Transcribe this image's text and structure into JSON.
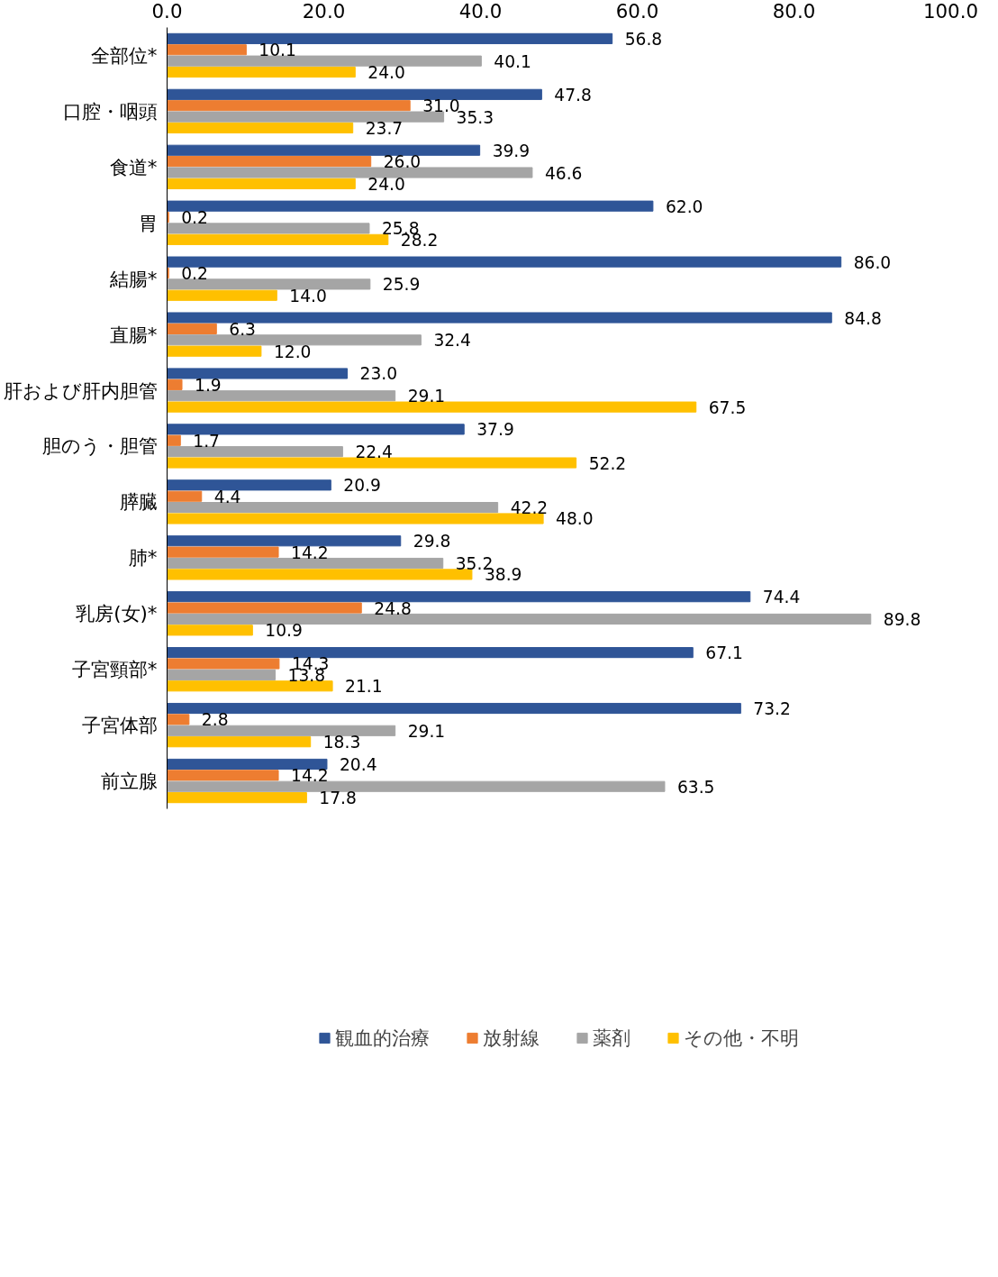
{
  "chart_data": {
    "type": "bar",
    "orientation": "horizontal",
    "categories": [
      "全部位*",
      "口腔・咽頭",
      "食道*",
      "胃",
      "結腸*",
      "直腸*",
      "肝および肝内胆管",
      "胆のう・胆管",
      "膵臓",
      "肺*",
      "乳房(女)*",
      "子宮頸部*",
      "子宮体部",
      "前立腺"
    ],
    "series": [
      {
        "name": "観血的治療",
        "color": "#2f5597",
        "values": [
          56.8,
          47.8,
          39.9,
          62.0,
          86.0,
          84.8,
          23.0,
          37.9,
          20.9,
          29.8,
          74.4,
          67.1,
          73.2,
          20.4
        ],
        "value_labels": [
          "56.8",
          "47.8",
          "39.9",
          "62.0",
          "86.0",
          "84.8",
          "23.0",
          "37.9",
          "20.9",
          "29.8",
          "74.4",
          "67.1",
          "73.2",
          "20.4"
        ]
      },
      {
        "name": "放射線",
        "color": "#ed7d31",
        "values": [
          10.1,
          31.0,
          26.0,
          0.2,
          0.2,
          6.3,
          1.9,
          1.7,
          4.4,
          14.2,
          24.8,
          14.3,
          2.8,
          14.2
        ],
        "value_labels": [
          "10.1",
          "31.0",
          "26.0",
          "0.2",
          "0.2",
          "6.3",
          "1.9",
          "1.7",
          "4.4",
          "14.2",
          "24.8",
          "14.3",
          "2.8",
          "14.2"
        ]
      },
      {
        "name": "薬剤",
        "color": "#a5a5a5",
        "values": [
          40.1,
          35.3,
          46.6,
          25.8,
          25.9,
          32.4,
          29.1,
          22.4,
          42.2,
          35.2,
          89.8,
          13.8,
          29.1,
          63.5
        ],
        "value_labels": [
          "40.1",
          "35.3",
          "46.6",
          "25.8",
          "25.9",
          "32.4",
          "29.1",
          "22.4",
          "42.2",
          "35.2",
          "89.8",
          "13.8",
          "29.1",
          "63.5"
        ]
      },
      {
        "name": "その他・不明",
        "color": "#ffc000",
        "values": [
          24.0,
          23.7,
          24.0,
          28.2,
          14.0,
          12.0,
          67.5,
          52.2,
          48.0,
          38.9,
          10.9,
          21.1,
          18.3,
          17.8
        ],
        "value_labels": [
          "24.0",
          "23.7",
          "24.0",
          "28.2",
          "14.0",
          "12.0",
          "67.5",
          "52.2",
          "48.0",
          "38.9",
          "10.9",
          "21.1",
          "18.3",
          "17.8"
        ]
      }
    ],
    "xlim": [
      0,
      100
    ],
    "xticks": [
      {
        "value": 0,
        "label": "0.0"
      },
      {
        "value": 20,
        "label": "20.0"
      },
      {
        "value": 40,
        "label": "40.0"
      },
      {
        "value": 60,
        "label": "60.0"
      },
      {
        "value": 80,
        "label": "80.0"
      },
      {
        "value": 100,
        "label": "100.0"
      }
    ],
    "grid": false,
    "legend": "bottom"
  }
}
